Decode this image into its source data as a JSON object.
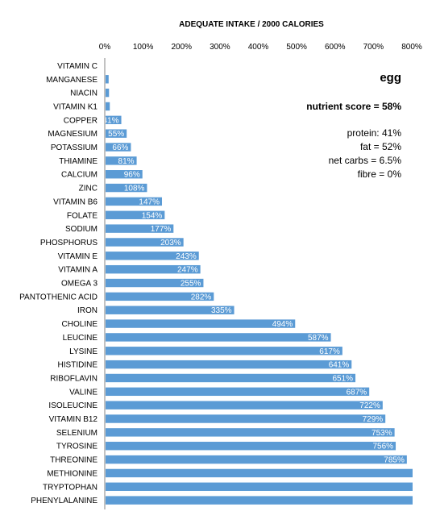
{
  "chart_data": {
    "type": "bar",
    "orientation": "horizontal",
    "title": "ADEQUATE INTAKE / 2000 CALORIES",
    "xlabel": "",
    "ylabel": "",
    "xlim": [
      0,
      800
    ],
    "x_ticks": [
      "0%",
      "100%",
      "200%",
      "300%",
      "400%",
      "500%",
      "600%",
      "700%",
      "800%"
    ],
    "grid": false,
    "bar_color": "#5b9bd5",
    "categories": [
      "VITAMIN C",
      "MANGANESE",
      "NIACIN",
      "VITAMIN K1",
      "COPPER",
      "MAGNESIUM",
      "POTASSIUM",
      "THIAMINE",
      "CALCIUM",
      "ZINC",
      "VITAMIN B6",
      "FOLATE",
      "SODIUM",
      "PHOSPHORUS",
      "VITAMIN E",
      "VITAMIN A",
      "OMEGA 3",
      "PANTOTHENIC ACID",
      "IRON",
      "CHOLINE",
      "LEUCINE",
      "LYSINE",
      "HISTIDINE",
      "RIBOFLAVIN",
      "VALINE",
      "ISOLEUCINE",
      "VITAMIN B12",
      "SELENIUM",
      "TYROSINE",
      "THREONINE",
      "METHIONINE",
      "TRYPTOPHAN",
      "PHENYLALANINE"
    ],
    "values": [
      0,
      8,
      9,
      11,
      41,
      55,
      66,
      81,
      96,
      108,
      147,
      154,
      177,
      203,
      243,
      247,
      255,
      282,
      335,
      494,
      587,
      617,
      641,
      651,
      687,
      722,
      729,
      753,
      756,
      785,
      800,
      800,
      800
    ],
    "data_labels": [
      "",
      "",
      "",
      "",
      "41%",
      "55%",
      "66%",
      "81%",
      "96%",
      "108%",
      "147%",
      "154%",
      "177%",
      "203%",
      "243%",
      "247%",
      "255%",
      "282%",
      "335%",
      "494%",
      "587%",
      "617%",
      "641%",
      "651%",
      "687%",
      "722%",
      "729%",
      "753%",
      "756%",
      "785%",
      "",
      "",
      ""
    ]
  },
  "info": {
    "food": "egg",
    "nutrient_score": "nutrient score = 58%",
    "protein": "protein: 41%",
    "fat": "fat = 52%",
    "net_carbs": "net carbs = 6.5%",
    "fibre": "fibre = 0%"
  }
}
